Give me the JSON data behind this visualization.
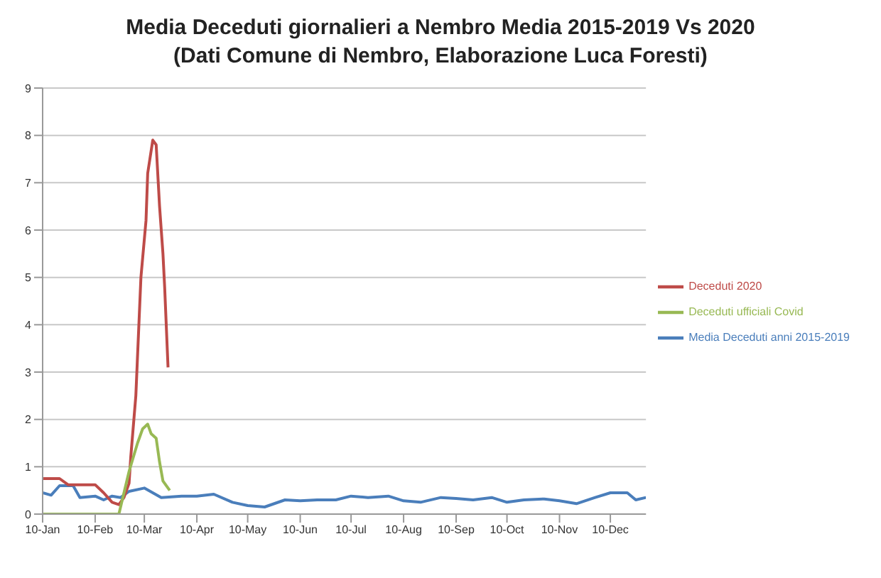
{
  "chart_data": {
    "type": "line",
    "title": "Media Deceduti giornalieri a Nembro Media 2015-2019 Vs 2020",
    "subtitle": "(Dati Comune di Nembro, Elaborazione Luca Foresti)",
    "xlim": [
      "--01-10",
      "--12-31"
    ],
    "xticks": [
      {
        "value": "--01-10",
        "label": "10-Jan"
      },
      {
        "value": "--02-10",
        "label": "10-Feb"
      },
      {
        "value": "--03-10",
        "label": "10-Mar"
      },
      {
        "value": "--04-10",
        "label": "10-Apr"
      },
      {
        "value": "--05-10",
        "label": "10-May"
      },
      {
        "value": "--06-10",
        "label": "10-Jun"
      },
      {
        "value": "--07-10",
        "label": "10-Jul"
      },
      {
        "value": "--08-10",
        "label": "10-Aug"
      },
      {
        "value": "--09-10",
        "label": "10-Sep"
      },
      {
        "value": "--10-10",
        "label": "10-Oct"
      },
      {
        "value": "--11-10",
        "label": "10-Nov"
      },
      {
        "value": "--12-10",
        "label": "10-Dec"
      }
    ],
    "ylim": [
      0,
      9
    ],
    "yticks": [
      0,
      1,
      2,
      3,
      4,
      5,
      6,
      7,
      8,
      9
    ],
    "grid": "y",
    "legend": "right",
    "marker": "none",
    "line_style": "solid",
    "series": [
      {
        "name": "Media Deceduti anni 2015-2019",
        "color": "#4a7ebb",
        "x": [
          "--01-10",
          "--01-15",
          "--01-20",
          "--01-28",
          "--02-01",
          "--02-10",
          "--02-15",
          "--02-20",
          "--02-25",
          "--03-01",
          "--03-10",
          "--03-20",
          "--04-01",
          "--04-10",
          "--04-20",
          "--05-01",
          "--05-10",
          "--05-20",
          "--06-01",
          "--06-10",
          "--06-20",
          "--07-01",
          "--07-10",
          "--07-20",
          "--08-01",
          "--08-10",
          "--08-20",
          "--09-01",
          "--09-10",
          "--09-20",
          "--10-01",
          "--10-10",
          "--10-20",
          "--11-01",
          "--11-10",
          "--11-20",
          "--12-01",
          "--12-10",
          "--12-20",
          "--12-25",
          "--12-31"
        ],
        "values": [
          0.45,
          0.4,
          0.6,
          0.6,
          0.35,
          0.38,
          0.3,
          0.38,
          0.35,
          0.48,
          0.55,
          0.35,
          0.38,
          0.38,
          0.42,
          0.25,
          0.18,
          0.15,
          0.3,
          0.28,
          0.3,
          0.3,
          0.38,
          0.35,
          0.38,
          0.28,
          0.25,
          0.35,
          0.33,
          0.3,
          0.35,
          0.25,
          0.3,
          0.32,
          0.28,
          0.22,
          0.35,
          0.45,
          0.45,
          0.3,
          0.35
        ]
      },
      {
        "name": "Deceduti 2020",
        "color": "#be4b48",
        "x": [
          "--01-10",
          "--01-20",
          "--01-25",
          "--02-10",
          "--02-15",
          "--02-20",
          "--02-24",
          "--02-27",
          "--03-01",
          "--03-02",
          "--03-05",
          "--03-08",
          "--03-11",
          "--03-12",
          "--03-15",
          "--03-17",
          "--03-19",
          "--03-21",
          "--03-22",
          "--03-24"
        ],
        "values": [
          0.75,
          0.75,
          0.62,
          0.62,
          0.45,
          0.25,
          0.2,
          0.35,
          0.65,
          1.2,
          2.5,
          5,
          6.2,
          7.2,
          7.9,
          7.8,
          6.5,
          5.5,
          4.8,
          3.1
        ]
      },
      {
        "name": "Deceduti ufficiali Covid",
        "color": "#98b954",
        "x": [
          "--01-10",
          "--02-24",
          "--03-01",
          "--03-06",
          "--03-09",
          "--03-12",
          "--03-14",
          "--03-17",
          "--03-19",
          "--03-21",
          "--03-25"
        ],
        "values": [
          0,
          0,
          0.9,
          1.5,
          1.8,
          1.9,
          1.7,
          1.6,
          1.1,
          0.7,
          0.5
        ]
      }
    ]
  }
}
